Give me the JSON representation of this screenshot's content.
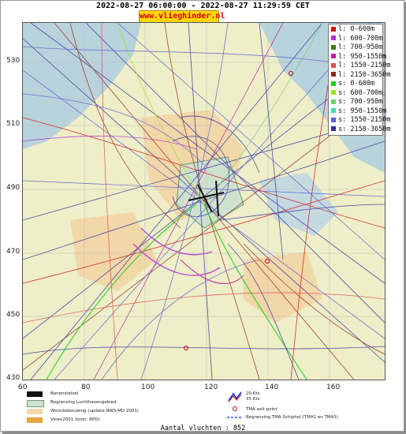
{
  "header": {
    "title": "2022-08-27 06:00:00 - 2022-08-27 11:29:59 CET",
    "site": "www.vlieghinder.nl"
  },
  "axes": {
    "y_ticks": [
      "530",
      "510",
      "490",
      "470",
      "450",
      "430"
    ],
    "x_ticks": [
      "60",
      "80",
      "100",
      "120",
      "140",
      "160"
    ]
  },
  "legend": {
    "items": [
      {
        "label": "l: 0-600m",
        "color": "#d01010"
      },
      {
        "label": "l: 600-700m",
        "color": "#b030d0"
      },
      {
        "label": "l: 700-950m",
        "color": "#3a7a10"
      },
      {
        "label": "l: 950-1550m",
        "color": "#c020a0"
      },
      {
        "label": "l: 1550-2150m",
        "color": "#e05050"
      },
      {
        "label": "l: 2150-3650m",
        "color": "#8b2a1a"
      },
      {
        "label": "s: 0-600m",
        "color": "#20d020"
      },
      {
        "label": "s: 600-700m",
        "color": "#a0e020"
      },
      {
        "label": "s: 700-950m",
        "color": "#70d070"
      },
      {
        "label": "s: 950-1550m",
        "color": "#40e0a0"
      },
      {
        "label": "s: 1550-2150m",
        "color": "#6060d0"
      },
      {
        "label": "s: 2150-3650m",
        "color": "#3030a0"
      }
    ]
  },
  "map_legend": {
    "runway": "Banenstelsel",
    "airport_boundary": "Begrenzing Luchthavengebied",
    "housing": "Woonbebouwing (update RWS-MD 2001)",
    "vinex": "Vinex2001 (bron: RPD)",
    "wind_20": "20 Kts",
    "wind_35": "35 Kts",
    "tma_exit": "TMA exit point",
    "tma_boundary": "Begrenzing TMA Schiphol  (TMA1 en TMA3)"
  },
  "footer": {
    "count": "Aantal vluchten : 852"
  }
}
